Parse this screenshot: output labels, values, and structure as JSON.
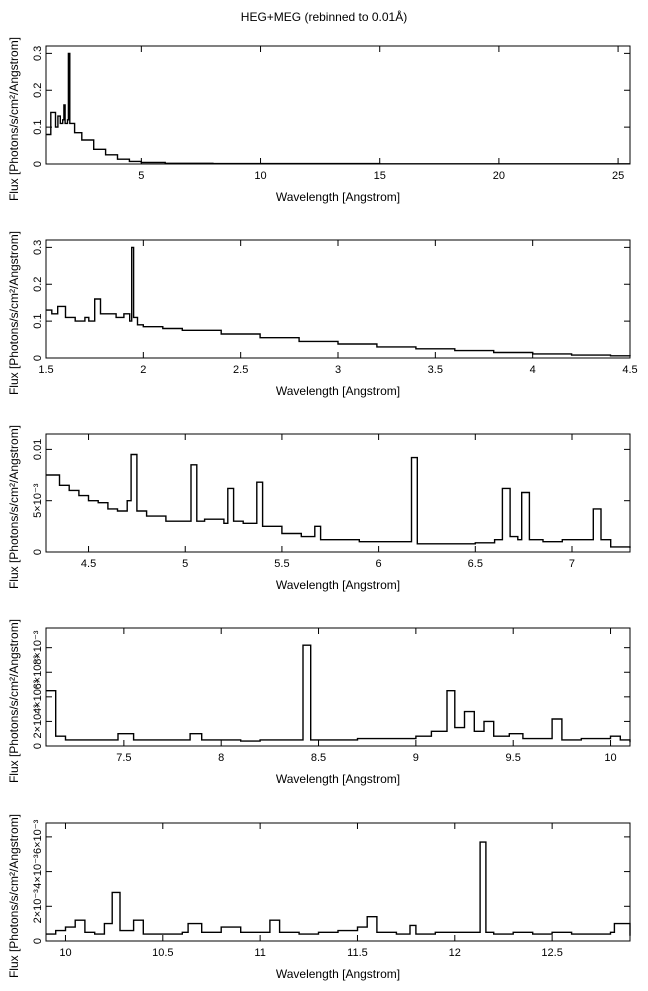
{
  "page": {
    "title": "HEG+MEG (rebinned to 0.01Å)"
  },
  "chart_data": [
    {
      "type": "line",
      "xlabel": "Wavelength [Angstrom]",
      "ylabel": "Flux [Photons/s/cm²/Angstrom]",
      "xlim": [
        1.0,
        25.5
      ],
      "ylim": [
        0,
        0.32
      ],
      "xticks": [
        5,
        10,
        15,
        20,
        25
      ],
      "yticks": [
        {
          "v": 0,
          "label": "0"
        },
        {
          "v": 0.1,
          "label": "0.1"
        },
        {
          "v": 0.2,
          "label": "0.2"
        },
        {
          "v": 0.3,
          "label": "0.3"
        }
      ],
      "series": [
        {
          "x": [
            1.0,
            1.2,
            1.4,
            1.5,
            1.6,
            1.7,
            1.75,
            1.8,
            1.9,
            1.94,
            2.0,
            2.2,
            2.5,
            3.0,
            3.5,
            4.0,
            4.5,
            5.0,
            6.0,
            7.0,
            8.0,
            10.0,
            15.0,
            20.0,
            25.5
          ],
          "y": [
            0.08,
            0.14,
            0.1,
            0.13,
            0.11,
            0.12,
            0.16,
            0.11,
            0.12,
            0.3,
            0.11,
            0.085,
            0.065,
            0.04,
            0.025,
            0.013,
            0.007,
            0.004,
            0.002,
            0.002,
            0.001,
            0.001,
            0.0005,
            0.0005,
            0.0005
          ]
        }
      ]
    },
    {
      "type": "line",
      "xlabel": "Wavelength [Angstrom]",
      "ylabel": "Flux [Photons/s/cm²/Angstrom]",
      "xlim": [
        1.5,
        4.5
      ],
      "ylim": [
        0,
        0.32
      ],
      "xticks": [
        1.5,
        2,
        2.5,
        3,
        3.5,
        4,
        4.5
      ],
      "yticks": [
        {
          "v": 0,
          "label": "0"
        },
        {
          "v": 0.1,
          "label": "0.1"
        },
        {
          "v": 0.2,
          "label": "0.2"
        },
        {
          "v": 0.3,
          "label": "0.3"
        }
      ],
      "series": [
        {
          "x": [
            1.5,
            1.53,
            1.56,
            1.6,
            1.65,
            1.7,
            1.72,
            1.75,
            1.78,
            1.82,
            1.86,
            1.9,
            1.93,
            1.94,
            1.95,
            1.97,
            2.0,
            2.1,
            2.2,
            2.4,
            2.6,
            2.8,
            3.0,
            3.2,
            3.4,
            3.6,
            3.8,
            4.0,
            4.2,
            4.4,
            4.5
          ],
          "y": [
            0.13,
            0.12,
            0.14,
            0.11,
            0.1,
            0.11,
            0.1,
            0.16,
            0.12,
            0.12,
            0.11,
            0.12,
            0.1,
            0.3,
            0.11,
            0.09,
            0.085,
            0.08,
            0.075,
            0.065,
            0.055,
            0.045,
            0.038,
            0.03,
            0.025,
            0.02,
            0.015,
            0.011,
            0.008,
            0.006,
            0.005
          ]
        }
      ]
    },
    {
      "type": "line",
      "xlabel": "Wavelength [Angstrom]",
      "ylabel": "Flux [Photons/s/cm²/Angstrom]",
      "xlim": [
        4.28,
        7.3
      ],
      "ylim": [
        0,
        0.0115
      ],
      "xticks": [
        4.5,
        5,
        5.5,
        6,
        6.5,
        7
      ],
      "yticks": [
        {
          "v": 0,
          "label": "0"
        },
        {
          "v": 0.005,
          "label": "5×10⁻³"
        },
        {
          "v": 0.01,
          "label": "0.01"
        }
      ],
      "series": [
        {
          "x": [
            4.28,
            4.35,
            4.4,
            4.45,
            4.5,
            4.55,
            4.6,
            4.65,
            4.7,
            4.72,
            4.75,
            4.8,
            4.9,
            5.0,
            5.03,
            5.06,
            5.1,
            5.2,
            5.22,
            5.25,
            5.3,
            5.37,
            5.4,
            5.5,
            5.6,
            5.67,
            5.7,
            5.8,
            5.9,
            6.0,
            6.1,
            6.17,
            6.18,
            6.2,
            6.3,
            6.4,
            6.5,
            6.6,
            6.64,
            6.68,
            6.72,
            6.74,
            6.78,
            6.85,
            6.95,
            7.05,
            7.11,
            7.15,
            7.2,
            7.3
          ],
          "y": [
            0.0075,
            0.0065,
            0.006,
            0.0055,
            0.005,
            0.0048,
            0.0042,
            0.004,
            0.005,
            0.0095,
            0.004,
            0.0035,
            0.003,
            0.003,
            0.0085,
            0.003,
            0.0032,
            0.0028,
            0.0062,
            0.003,
            0.0028,
            0.0068,
            0.0025,
            0.0018,
            0.0015,
            0.0025,
            0.0012,
            0.0012,
            0.001,
            0.001,
            0.001,
            0.0092,
            0.0092,
            0.0008,
            0.0008,
            0.0008,
            0.0009,
            0.0012,
            0.0062,
            0.0015,
            0.0012,
            0.0058,
            0.0012,
            0.001,
            0.0012,
            0.0012,
            0.0042,
            0.0012,
            0.0005,
            0.0004
          ]
        }
      ]
    },
    {
      "type": "line",
      "xlabel": "Wavelength [Angstrom]",
      "ylabel": "Flux [Photons/s/cm²/Angstrom]",
      "xlim": [
        7.1,
        10.1
      ],
      "ylim": [
        0,
        0.0096
      ],
      "xticks": [
        7.5,
        8,
        8.5,
        9,
        9.5,
        10
      ],
      "yticks": [
        {
          "v": 0,
          "label": "0"
        },
        {
          "v": 0.002,
          "label": "2×10⁻³"
        },
        {
          "v": 0.004,
          "label": "4×10⁻³"
        },
        {
          "v": 0.006,
          "label": "6×10⁻³"
        },
        {
          "v": 0.008,
          "label": "8×10⁻³"
        }
      ],
      "series": [
        {
          "x": [
            7.1,
            7.12,
            7.15,
            7.2,
            7.3,
            7.4,
            7.47,
            7.55,
            7.7,
            7.84,
            7.9,
            8.0,
            8.1,
            8.2,
            8.3,
            8.38,
            8.42,
            8.46,
            8.5,
            8.6,
            8.7,
            8.8,
            8.9,
            9.0,
            9.08,
            9.16,
            9.2,
            9.25,
            9.3,
            9.35,
            9.4,
            9.48,
            9.55,
            9.6,
            9.7,
            9.75,
            9.85,
            9.9,
            10.0,
            10.05,
            10.1
          ],
          "y": [
            0.0045,
            0.0045,
            0.0008,
            0.0005,
            0.0005,
            0.0005,
            0.001,
            0.0005,
            0.0005,
            0.001,
            0.0005,
            0.0005,
            0.0004,
            0.0005,
            0.0005,
            0.0005,
            0.0082,
            0.0005,
            0.0005,
            0.0005,
            0.0006,
            0.0006,
            0.0006,
            0.0008,
            0.0012,
            0.0045,
            0.0015,
            0.0028,
            0.0012,
            0.002,
            0.0008,
            0.001,
            0.0006,
            0.0006,
            0.0022,
            0.0005,
            0.0006,
            0.0006,
            0.0008,
            0.0005,
            0.0003
          ]
        }
      ]
    },
    {
      "type": "line",
      "xlabel": "Wavelength [Angstrom]",
      "ylabel": "Flux [Photons/s/cm²/Angstrom]",
      "xlim": [
        9.9,
        12.9
      ],
      "ylim": [
        0,
        0.0068
      ],
      "xticks": [
        10,
        10.5,
        11,
        11.5,
        12,
        12.5
      ],
      "yticks": [
        {
          "v": 0,
          "label": "0"
        },
        {
          "v": 0.002,
          "label": "2×10⁻³"
        },
        {
          "v": 0.004,
          "label": "4×10⁻³"
        },
        {
          "v": 0.006,
          "label": "6×10⁻³"
        }
      ],
      "series": [
        {
          "x": [
            9.9,
            9.95,
            10.0,
            10.05,
            10.1,
            10.15,
            10.2,
            10.24,
            10.28,
            10.35,
            10.4,
            10.5,
            10.6,
            10.63,
            10.7,
            10.8,
            10.9,
            11.0,
            11.05,
            11.1,
            11.2,
            11.3,
            11.4,
            11.5,
            11.55,
            11.6,
            11.7,
            11.77,
            11.8,
            11.9,
            12.0,
            12.08,
            12.13,
            12.16,
            12.2,
            12.3,
            12.4,
            12.5,
            12.6,
            12.7,
            12.8,
            12.82,
            12.9
          ],
          "y": [
            0.0004,
            0.0006,
            0.0008,
            0.0012,
            0.0005,
            0.0004,
            0.001,
            0.0028,
            0.0006,
            0.0012,
            0.0004,
            0.0004,
            0.0005,
            0.001,
            0.0005,
            0.0008,
            0.0005,
            0.0005,
            0.0012,
            0.0005,
            0.0004,
            0.0005,
            0.0006,
            0.0008,
            0.0014,
            0.0005,
            0.0004,
            0.0009,
            0.0004,
            0.0005,
            0.0005,
            0.0005,
            0.0057,
            0.0005,
            0.0004,
            0.0005,
            0.0004,
            0.0005,
            0.0004,
            0.0004,
            0.0005,
            0.001,
            0.0003
          ]
        }
      ]
    }
  ]
}
